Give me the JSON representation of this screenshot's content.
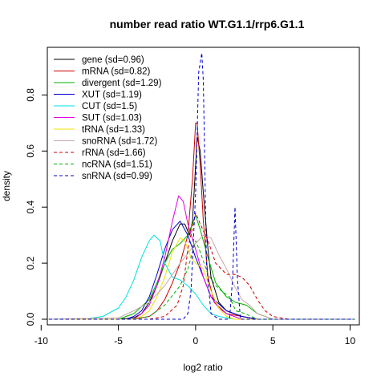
{
  "chart_data": {
    "type": "line",
    "title": "number read ratio WT.G1.1/rrp6.G1.1",
    "xlabel": "log2 ratio",
    "ylabel": "density",
    "xlim": [
      -9.6,
      10.6
    ],
    "ylim": [
      -0.02,
      0.97
    ],
    "xticks": [
      -10,
      -5,
      0,
      5,
      10
    ],
    "yticks": [
      0.0,
      0.2,
      0.4,
      0.6,
      0.8
    ],
    "legend_position": "top-left",
    "grid": false,
    "series": [
      {
        "name": "gene (sd=0.96)",
        "color": "#000000",
        "dash": "solid",
        "points": [
          [
            -9.5,
            0
          ],
          [
            -5,
            0
          ],
          [
            -4,
            0.005
          ],
          [
            -3.5,
            0.02
          ],
          [
            -3,
            0.06
          ],
          [
            -2.5,
            0.12
          ],
          [
            -2,
            0.2
          ],
          [
            -1.5,
            0.28
          ],
          [
            -1,
            0.34
          ],
          [
            -0.7,
            0.34
          ],
          [
            -0.4,
            0.3
          ],
          [
            -0.2,
            0.35
          ],
          [
            0,
            0.55
          ],
          [
            0.1,
            0.65
          ],
          [
            0.3,
            0.6
          ],
          [
            0.5,
            0.45
          ],
          [
            0.8,
            0.25
          ],
          [
            1,
            0.15
          ],
          [
            1.5,
            0.06
          ],
          [
            2,
            0.03
          ],
          [
            3,
            0.01
          ],
          [
            4,
            0
          ],
          [
            10.3,
            0
          ]
        ]
      },
      {
        "name": "mRNA (sd=0.82)",
        "color": "#cc0000",
        "dash": "solid",
        "points": [
          [
            -9.5,
            0
          ],
          [
            -4,
            0
          ],
          [
            -3,
            0.01
          ],
          [
            -2.5,
            0.03
          ],
          [
            -2,
            0.07
          ],
          [
            -1.5,
            0.13
          ],
          [
            -1,
            0.2
          ],
          [
            -0.5,
            0.3
          ],
          [
            -0.2,
            0.5
          ],
          [
            0,
            0.7
          ],
          [
            0.1,
            0.7
          ],
          [
            0.3,
            0.55
          ],
          [
            0.5,
            0.35
          ],
          [
            0.8,
            0.15
          ],
          [
            1.2,
            0.06
          ],
          [
            2,
            0.02
          ],
          [
            3,
            0.01
          ],
          [
            4,
            0
          ],
          [
            10.3,
            0
          ]
        ]
      },
      {
        "name": "divergent (sd=1.29)",
        "color": "#00b000",
        "dash": "solid",
        "points": [
          [
            -9.5,
            0
          ],
          [
            -5,
            0
          ],
          [
            -4,
            0.02
          ],
          [
            -3,
            0.07
          ],
          [
            -2.5,
            0.13
          ],
          [
            -2,
            0.2
          ],
          [
            -1.5,
            0.25
          ],
          [
            -1,
            0.27
          ],
          [
            -0.5,
            0.3
          ],
          [
            0,
            0.37
          ],
          [
            0.3,
            0.32
          ],
          [
            0.8,
            0.22
          ],
          [
            1.3,
            0.13
          ],
          [
            2,
            0.08
          ],
          [
            2.6,
            0.06
          ],
          [
            3.3,
            0.05
          ],
          [
            4,
            0.02
          ],
          [
            5,
            0
          ],
          [
            10.3,
            0
          ]
        ]
      },
      {
        "name": "XUT (sd=1.19)",
        "color": "#0000cc",
        "dash": "solid",
        "points": [
          [
            -9.5,
            0
          ],
          [
            -4.5,
            0
          ],
          [
            -4,
            0.01
          ],
          [
            -3.5,
            0.03
          ],
          [
            -3,
            0.08
          ],
          [
            -2.5,
            0.16
          ],
          [
            -2,
            0.25
          ],
          [
            -1.5,
            0.32
          ],
          [
            -1,
            0.35
          ],
          [
            -0.5,
            0.3
          ],
          [
            0,
            0.22
          ],
          [
            0.5,
            0.15
          ],
          [
            1,
            0.08
          ],
          [
            2,
            0.03
          ],
          [
            3,
            0.01
          ],
          [
            4,
            0
          ],
          [
            10.3,
            0
          ]
        ]
      },
      {
        "name": "CUT (sd=1.5)",
        "color": "#00e0e0",
        "dash": "solid",
        "points": [
          [
            -9.5,
            0
          ],
          [
            -7,
            0.002
          ],
          [
            -6,
            0.01
          ],
          [
            -5,
            0.04
          ],
          [
            -4.5,
            0.08
          ],
          [
            -4,
            0.14
          ],
          [
            -3.5,
            0.22
          ],
          [
            -3,
            0.28
          ],
          [
            -2.7,
            0.3
          ],
          [
            -2.3,
            0.28
          ],
          [
            -2,
            0.2
          ],
          [
            -1.5,
            0.15
          ],
          [
            -1,
            0.14
          ],
          [
            -0.5,
            0.12
          ],
          [
            0,
            0.09
          ],
          [
            0.5,
            0.05
          ],
          [
            1,
            0.02
          ],
          [
            1.5,
            0.01
          ],
          [
            2.5,
            0
          ],
          [
            10.3,
            0
          ]
        ]
      },
      {
        "name": "SUT (sd=1.03)",
        "color": "#e000e0",
        "dash": "solid",
        "points": [
          [
            -9.5,
            0
          ],
          [
            -4,
            0
          ],
          [
            -3.5,
            0.02
          ],
          [
            -3,
            0.05
          ],
          [
            -2.5,
            0.12
          ],
          [
            -2,
            0.22
          ],
          [
            -1.5,
            0.35
          ],
          [
            -1.1,
            0.44
          ],
          [
            -0.8,
            0.42
          ],
          [
            -0.5,
            0.34
          ],
          [
            0,
            0.25
          ],
          [
            0.5,
            0.15
          ],
          [
            1,
            0.08
          ],
          [
            1.5,
            0.04
          ],
          [
            2,
            0.02
          ],
          [
            3,
            0
          ],
          [
            10.3,
            0
          ]
        ]
      },
      {
        "name": "tRNA (sd=1.33)",
        "color": "#f0e000",
        "dash": "solid",
        "points": [
          [
            -9.5,
            0
          ],
          [
            -4,
            0
          ],
          [
            -3.5,
            0.01
          ],
          [
            -3,
            0.03
          ],
          [
            -2.5,
            0.08
          ],
          [
            -2,
            0.15
          ],
          [
            -1.5,
            0.24
          ],
          [
            -1,
            0.29
          ],
          [
            -0.7,
            0.28
          ],
          [
            -0.3,
            0.22
          ],
          [
            0,
            0.2
          ],
          [
            0.5,
            0.18
          ],
          [
            1,
            0.1
          ],
          [
            1.5,
            0.04
          ],
          [
            2,
            0.01
          ],
          [
            2.5,
            0
          ],
          [
            10.3,
            0
          ]
        ]
      },
      {
        "name": "snoRNA (sd=1.72)",
        "color": "#c8a8a8",
        "dash": "solid",
        "points": [
          [
            -9.5,
            0
          ],
          [
            -5,
            0.005
          ],
          [
            -4,
            0.03
          ],
          [
            -3,
            0.06
          ],
          [
            -2,
            0.12
          ],
          [
            -1,
            0.2
          ],
          [
            0,
            0.27
          ],
          [
            0.5,
            0.3
          ],
          [
            1,
            0.29
          ],
          [
            1.5,
            0.23
          ],
          [
            2,
            0.18
          ],
          [
            2.5,
            0.12
          ],
          [
            3,
            0.07
          ],
          [
            3.5,
            0.05
          ],
          [
            4,
            0.02
          ],
          [
            5,
            0
          ],
          [
            10.3,
            0
          ]
        ]
      },
      {
        "name": "rRNA (sd=1.66)",
        "color": "#cc0000",
        "dash": "dashed",
        "points": [
          [
            -9.5,
            0
          ],
          [
            -3,
            0
          ],
          [
            -2,
            0.01
          ],
          [
            -1.2,
            0.05
          ],
          [
            -0.8,
            0.12
          ],
          [
            -0.5,
            0.25
          ],
          [
            0,
            0.38
          ],
          [
            0.3,
            0.34
          ],
          [
            0.8,
            0.28
          ],
          [
            1.3,
            0.2
          ],
          [
            2,
            0.16
          ],
          [
            2.5,
            0.16
          ],
          [
            3,
            0.15
          ],
          [
            3.5,
            0.12
          ],
          [
            4,
            0.07
          ],
          [
            4.5,
            0.03
          ],
          [
            5,
            0.01
          ],
          [
            6,
            0
          ],
          [
            10.3,
            0
          ]
        ]
      },
      {
        "name": "ncRNA (sd=1.51)",
        "color": "#00b000",
        "dash": "dashed",
        "points": [
          [
            -9.5,
            0
          ],
          [
            -4,
            0
          ],
          [
            -3,
            0.01
          ],
          [
            -2,
            0.05
          ],
          [
            -1,
            0.12
          ],
          [
            -0.5,
            0.18
          ],
          [
            0,
            0.28
          ],
          [
            0.3,
            0.24
          ],
          [
            0.8,
            0.16
          ],
          [
            1.3,
            0.12
          ],
          [
            1.7,
            0.1
          ],
          [
            2.2,
            0.08
          ],
          [
            2.6,
            0.03
          ],
          [
            3.2,
            0.02
          ],
          [
            4,
            0
          ],
          [
            10.3,
            0
          ]
        ]
      },
      {
        "name": "snRNA (sd=0.99)",
        "color": "#0000cc",
        "dash": "dashed",
        "points": [
          [
            -9.5,
            0
          ],
          [
            -0.8,
            0
          ],
          [
            -0.5,
            0.02
          ],
          [
            -0.3,
            0.1
          ],
          [
            0,
            0.45
          ],
          [
            0.2,
            0.88
          ],
          [
            0.4,
            0.95
          ],
          [
            0.5,
            0.85
          ],
          [
            0.7,
            0.2
          ],
          [
            1,
            0.02
          ],
          [
            1.5,
            0
          ],
          [
            2.2,
            0
          ],
          [
            2.4,
            0.15
          ],
          [
            2.55,
            0.4
          ],
          [
            2.7,
            0.15
          ],
          [
            2.9,
            0
          ],
          [
            10.3,
            0
          ]
        ]
      }
    ]
  }
}
